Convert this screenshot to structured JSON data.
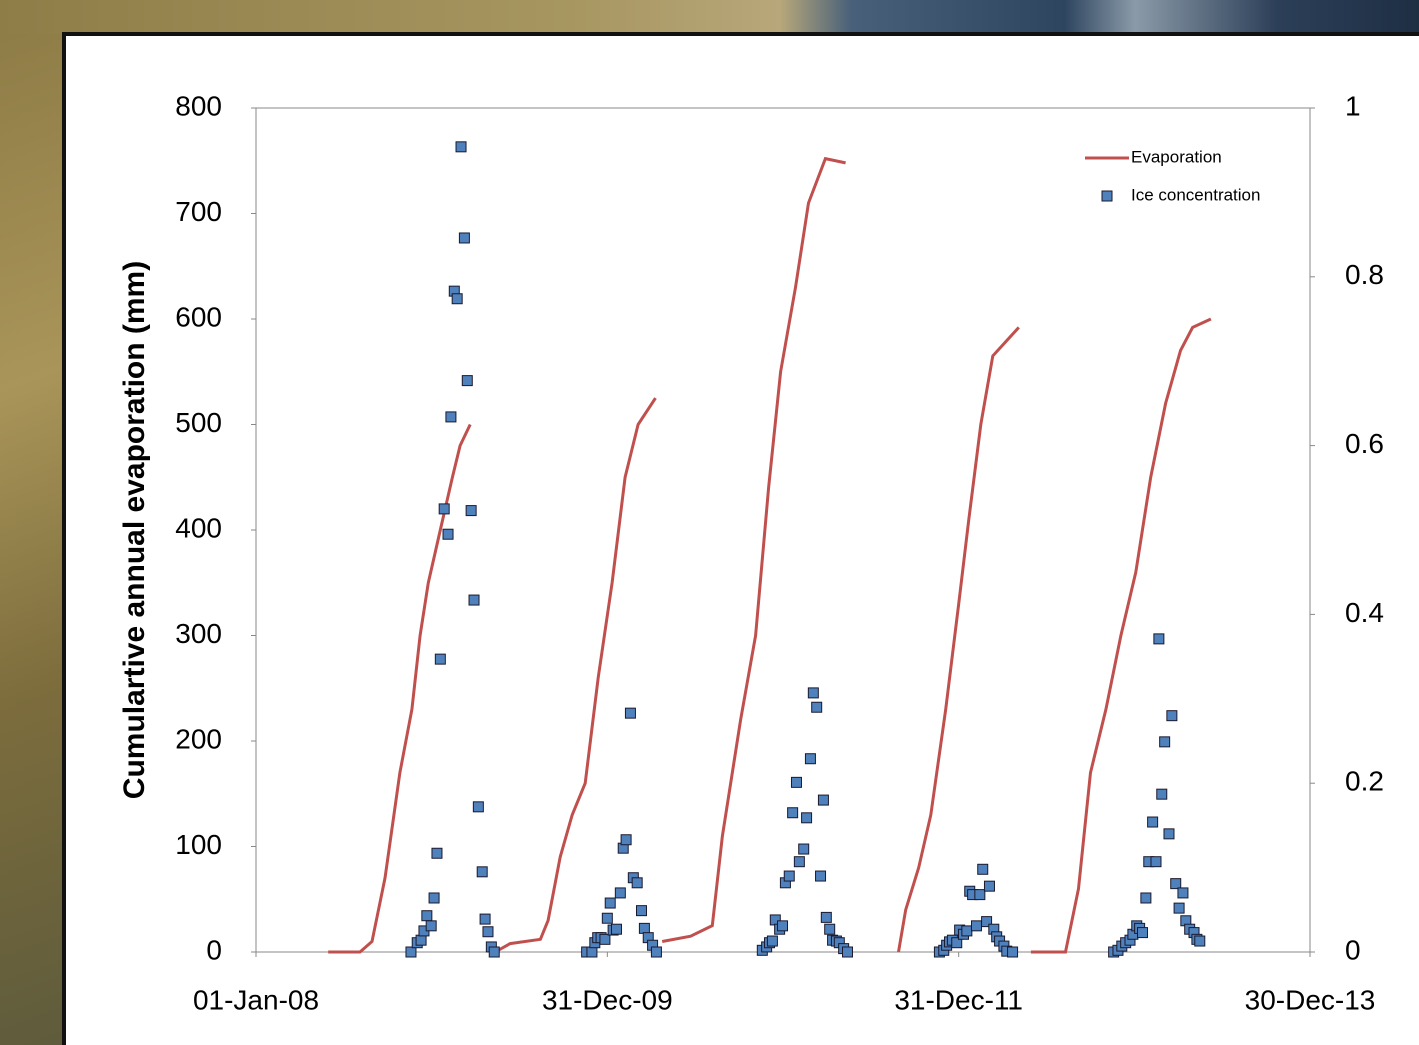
{
  "chart_data": {
    "type": "line-scatter",
    "y_label": "Cumulartive annual evaporation (mm)",
    "xlim": [
      "2008-01-01",
      "2013-12-30"
    ],
    "xticks": [
      {
        "value": "2008-01-01",
        "label": "01-Jan-08"
      },
      {
        "value": "2009-12-31",
        "label": "31-Dec-09"
      },
      {
        "value": "2011-12-31",
        "label": "31-Dec-11"
      },
      {
        "value": "2013-12-30",
        "label": "30-Dec-13"
      }
    ],
    "ylim": [
      0,
      800
    ],
    "yticks": [
      0,
      100,
      200,
      300,
      400,
      500,
      600,
      700,
      800
    ],
    "y2lim": [
      0,
      1
    ],
    "y2ticks": [
      0,
      0.2,
      0.4,
      0.6,
      0.8,
      1
    ],
    "legend": "top-right",
    "series": [
      {
        "name": "Evaporation",
        "type": "line",
        "color": "#c0504d",
        "x": [
          "2008-05-30",
          "2008-08-04",
          "2008-08-29",
          "2008-09-25",
          "2008-10-26",
          "2008-11-20",
          "2008-12-07",
          "2008-12-24",
          "2009-01-18",
          "2009-02-12",
          "2009-02-28",
          "2009-03-21",
          "2009-04-20",
          "2009-05-12",
          "2009-06-12",
          "2009-08-14",
          "2009-08-30",
          "2009-09-24",
          "2009-10-19",
          "2009-11-15",
          "2009-12-12",
          "2010-01-10",
          "2010-02-06",
          "2010-03-05",
          "2010-04-10",
          "2010-04-17",
          "2010-04-24",
          "2010-06-22",
          "2010-08-06",
          "2010-08-27",
          "2010-10-04",
          "2010-11-04",
          "2010-12-01",
          "2010-12-26",
          "2011-01-26",
          "2011-02-22",
          "2011-03-29",
          "2011-05-10",
          "2011-07-01",
          "2011-08-28",
          "2011-09-12",
          "2011-10-09",
          "2011-11-03",
          "2011-12-04",
          "2011-12-31",
          "2012-01-21",
          "2012-02-15",
          "2012-03-11",
          "2012-05-04",
          "2012-05-16",
          "2012-05-29",
          "2012-08-09",
          "2012-09-05",
          "2012-09-30",
          "2012-11-01",
          "2012-12-02",
          "2013-01-02",
          "2013-02-02",
          "2013-03-05",
          "2013-04-05",
          "2013-04-30",
          "2013-06-07"
        ],
        "values": [
          0,
          0,
          10,
          70,
          170,
          230,
          300,
          350,
          400,
          450,
          480,
          500,
          null,
          0,
          8,
          12,
          30,
          90,
          130,
          160,
          260,
          350,
          450,
          500,
          525,
          null,
          10,
          15,
          25,
          110,
          220,
          300,
          440,
          550,
          630,
          710,
          752,
          748,
          null,
          0,
          40,
          80,
          130,
          230,
          330,
          410,
          500,
          565,
          592,
          null,
          0,
          0,
          60,
          170,
          230,
          300,
          360,
          450,
          520,
          570,
          592,
          600
        ]
      },
      {
        "name": "Ice concentration",
        "type": "scatter",
        "axis": "y2",
        "color": "#4f81bd",
        "x": [
          "2008-11-18",
          "2008-12-01",
          "2008-12-09",
          "2008-12-15",
          "2008-12-21",
          "2008-12-30",
          "2009-01-05",
          "2009-01-11",
          "2009-01-18",
          "2009-01-26",
          "2009-02-03",
          "2009-02-09",
          "2009-02-16",
          "2009-02-22",
          "2009-03-02",
          "2009-03-09",
          "2009-03-15",
          "2009-03-23",
          "2009-03-29",
          "2009-04-07",
          "2009-04-15",
          "2009-04-21",
          "2009-04-27",
          "2009-05-04",
          "2009-05-10",
          "2009-11-18",
          "2009-11-29",
          "2009-12-05",
          "2009-12-11",
          "2009-12-18",
          "2009-12-26",
          "2009-12-31",
          "2010-01-06",
          "2010-01-12",
          "2010-01-19",
          "2010-01-27",
          "2010-02-02",
          "2010-02-08",
          "2010-02-17",
          "2010-02-23",
          "2010-03-03",
          "2010-03-12",
          "2010-03-18",
          "2010-03-26",
          "2010-04-04",
          "2010-04-12",
          "2010-11-18",
          "2010-11-27",
          "2010-12-03",
          "2010-12-09",
          "2010-12-15",
          "2010-12-24",
          "2010-12-30",
          "2011-01-05",
          "2011-01-13",
          "2011-01-20",
          "2011-01-28",
          "2011-02-03",
          "2011-02-12",
          "2011-02-18",
          "2011-02-26",
          "2011-03-04",
          "2011-03-11",
          "2011-03-19",
          "2011-03-25",
          "2011-03-31",
          "2011-04-07",
          "2011-04-13",
          "2011-04-21",
          "2011-04-27",
          "2011-05-06",
          "2011-05-14",
          "2011-11-21",
          "2011-11-30",
          "2011-12-06",
          "2011-12-12",
          "2011-12-18",
          "2011-12-27",
          "2012-01-02",
          "2012-01-10",
          "2012-01-17",
          "2012-01-23",
          "2012-01-29",
          "2012-02-06",
          "2012-02-13",
          "2012-02-19",
          "2012-02-27",
          "2012-03-04",
          "2012-03-13",
          "2012-03-19",
          "2012-03-25",
          "2012-04-03",
          "2012-04-09",
          "2012-04-21",
          "2012-11-17",
          "2012-11-26",
          "2012-12-04",
          "2012-12-12",
          "2012-12-21",
          "2012-12-27",
          "2013-01-04",
          "2013-01-10",
          "2013-01-16",
          "2013-01-23",
          "2013-01-29",
          "2013-02-06",
          "2013-02-13",
          "2013-02-19",
          "2013-02-25",
          "2013-03-03",
          "2013-03-12",
          "2013-03-18",
          "2013-03-26",
          "2013-04-02",
          "2013-04-10",
          "2013-04-16",
          "2013-04-24",
          "2013-05-03",
          "2013-05-09",
          "2013-05-15"
        ],
        "values": [
          0,
          0.011,
          0.014,
          0.025,
          0.043,
          0.031,
          0.064,
          0.117,
          0.347,
          0.525,
          0.495,
          0.634,
          0.783,
          0.774,
          0.954,
          0.846,
          0.677,
          0.523,
          0.417,
          0.172,
          0.095,
          0.039,
          0.024,
          0.006,
          0,
          0,
          0,
          0.011,
          0.017,
          0.017,
          0.015,
          0.04,
          0.058,
          0.026,
          0.027,
          0.07,
          0.123,
          0.133,
          0.283,
          0.088,
          0.082,
          0.049,
          0.028,
          0.017,
          0.008,
          0,
          0.002,
          0.006,
          0.011,
          0.013,
          0.038,
          0.027,
          0.031,
          0.082,
          0.09,
          0.165,
          0.201,
          0.107,
          0.122,
          0.159,
          0.229,
          0.307,
          0.29,
          0.09,
          0.18,
          0.041,
          0.027,
          0.014,
          0.013,
          0.011,
          0.004,
          0,
          0,
          0.002,
          0.008,
          0.012,
          0.014,
          0.011,
          0.026,
          0.021,
          0.025,
          0.072,
          0.068,
          0.031,
          0.068,
          0.098,
          0.036,
          0.078,
          0.027,
          0.018,
          0.013,
          0.007,
          0.001,
          0,
          0,
          0.002,
          0.007,
          0.011,
          0.014,
          0.021,
          0.031,
          0.028,
          0.023,
          0.064,
          0.107,
          0.154,
          0.107,
          0.371,
          0.187,
          0.249,
          0.14,
          0.28,
          0.081,
          0.052,
          0.07,
          0.037,
          0.027,
          0.023,
          0.015,
          0.013
        ]
      }
    ]
  }
}
